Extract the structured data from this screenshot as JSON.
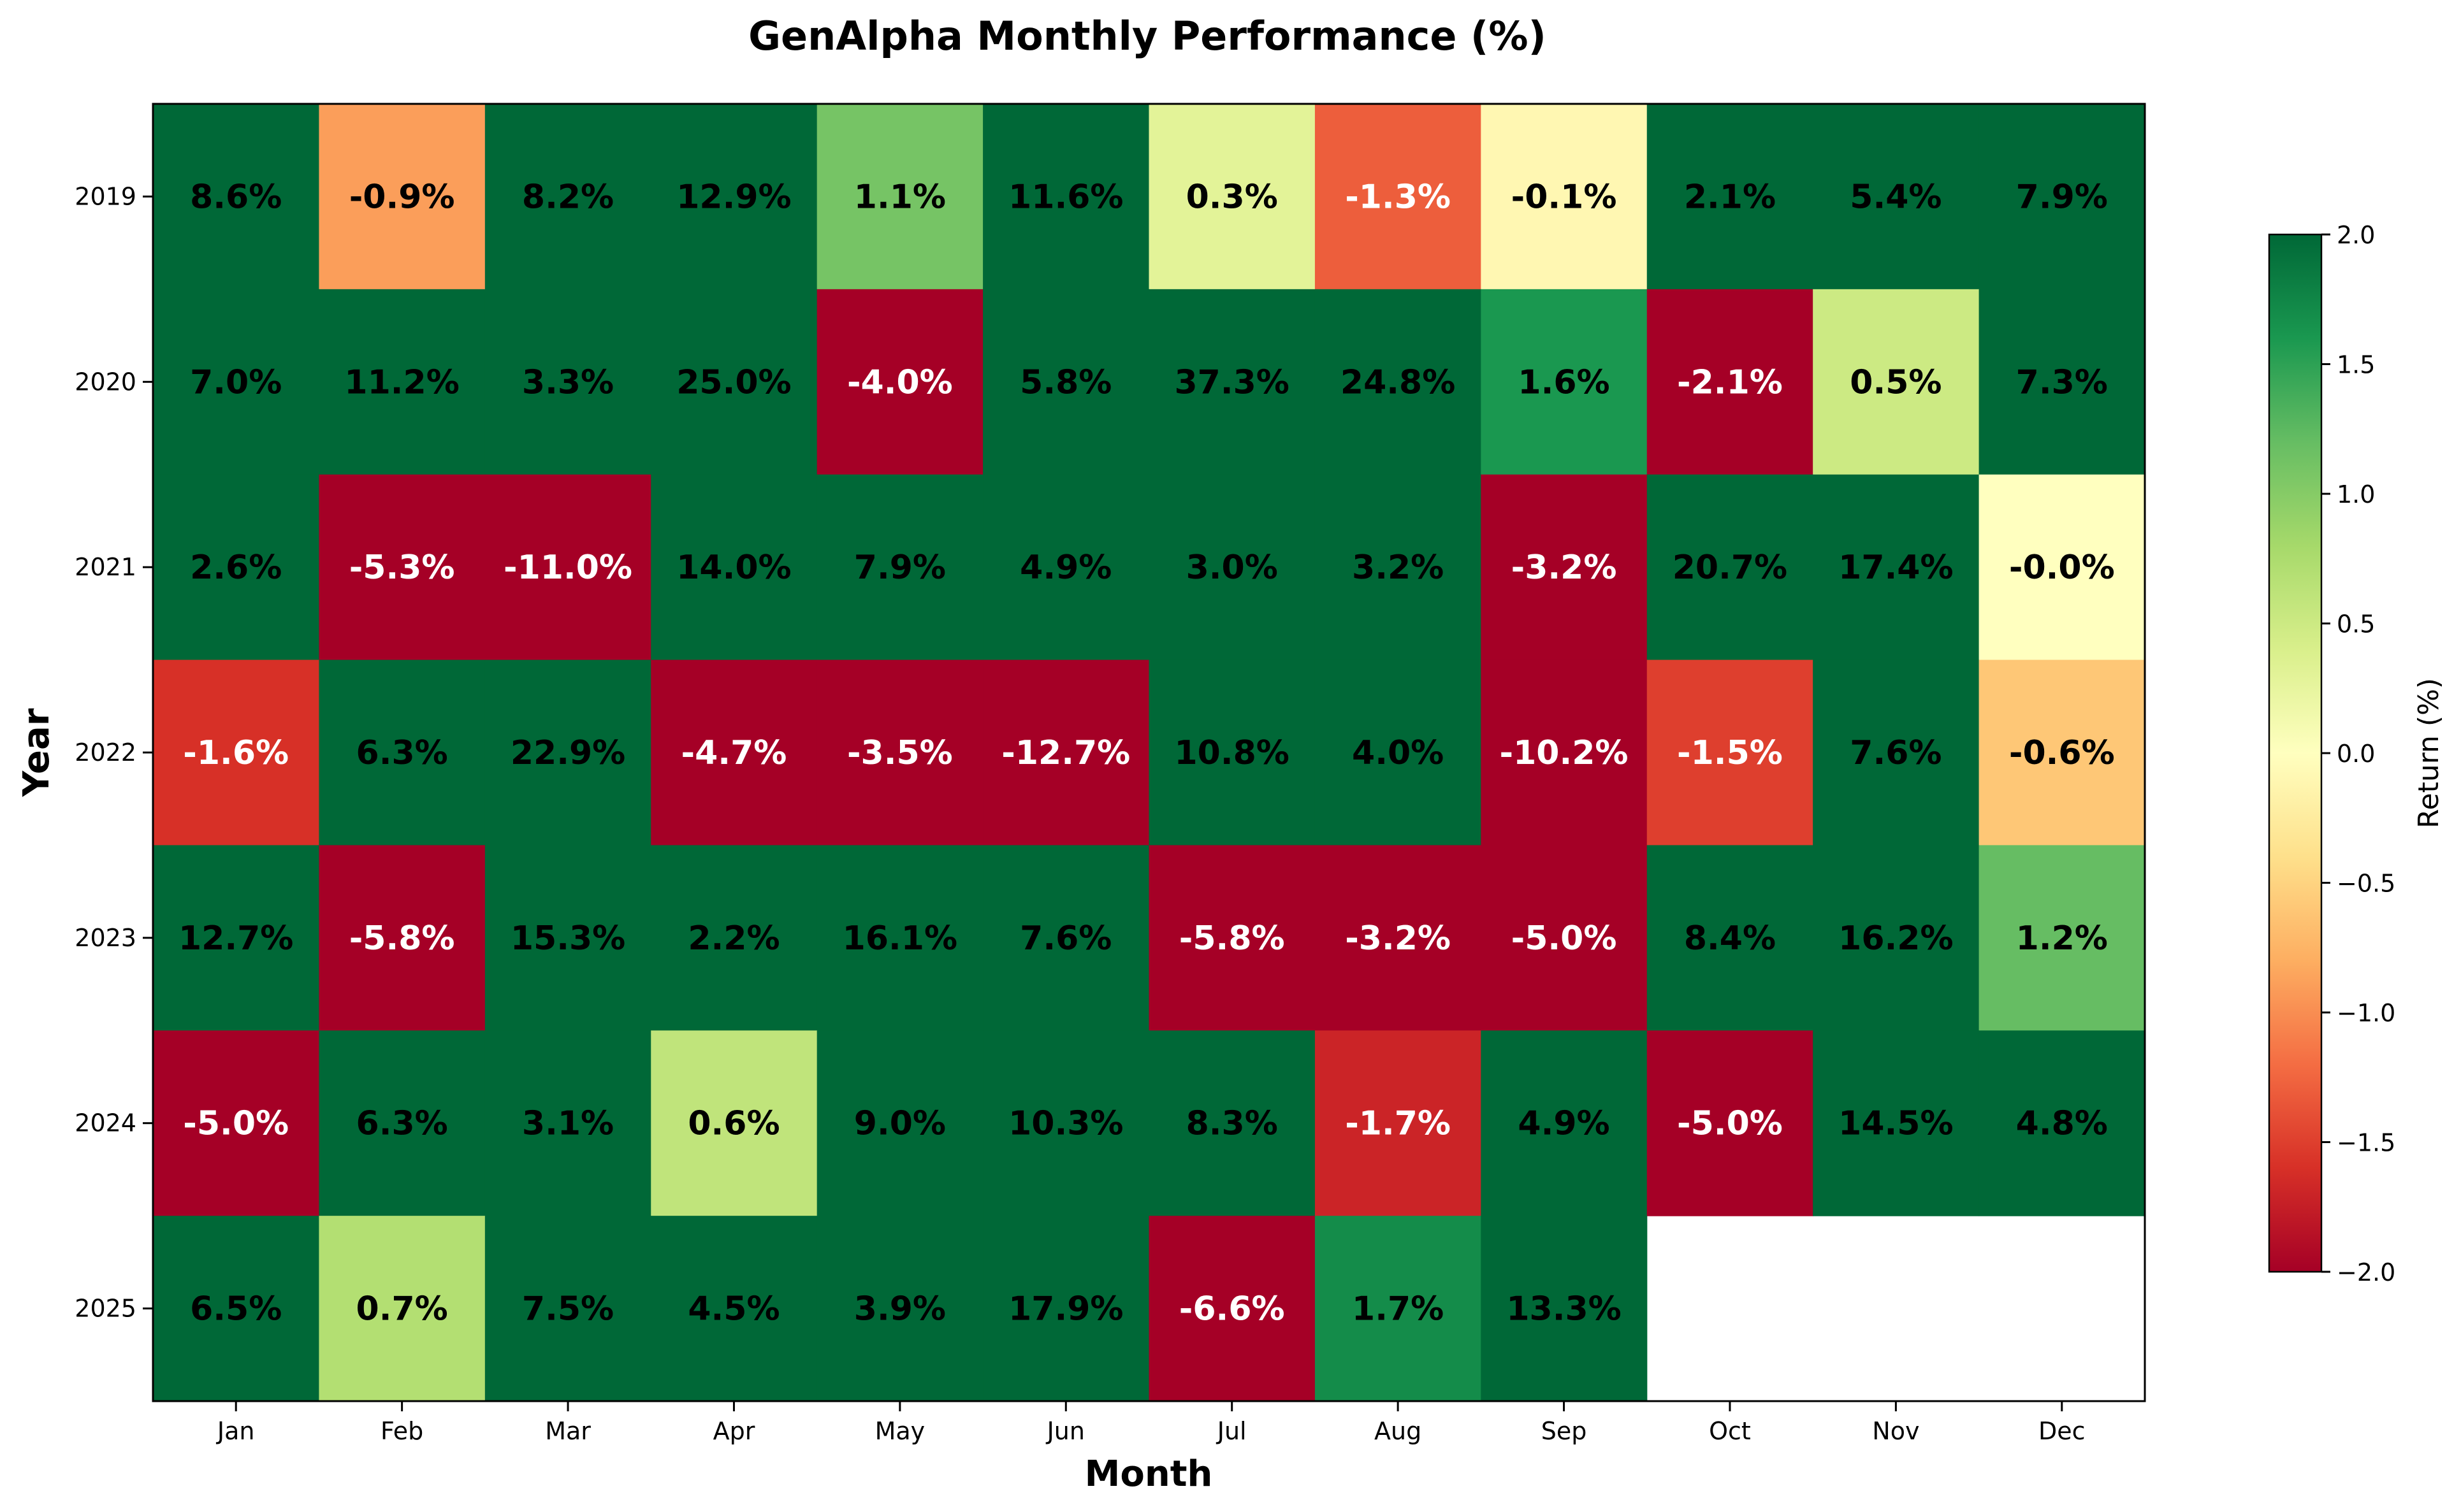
{
  "chart_data": {
    "type": "heatmap",
    "title": "GenAlpha Monthly Performance (%)",
    "xlabel": "Month",
    "ylabel": "Year",
    "x": [
      "Jan",
      "Feb",
      "Mar",
      "Apr",
      "May",
      "Jun",
      "Jul",
      "Aug",
      "Sep",
      "Oct",
      "Nov",
      "Dec"
    ],
    "y": [
      "2019",
      "2020",
      "2021",
      "2022",
      "2023",
      "2024",
      "2025"
    ],
    "values": [
      [
        8.6,
        -0.9,
        8.2,
        12.9,
        1.1,
        11.6,
        0.3,
        -1.3,
        -0.1,
        2.1,
        5.4,
        7.9
      ],
      [
        7.0,
        11.2,
        3.3,
        25.0,
        -4.0,
        5.8,
        37.3,
        24.8,
        1.6,
        -2.1,
        0.5,
        7.3
      ],
      [
        2.6,
        -5.3,
        -11.0,
        14.0,
        7.9,
        4.9,
        3.0,
        3.2,
        -3.2,
        20.7,
        17.4,
        -0.0
      ],
      [
        -1.6,
        6.3,
        22.9,
        -4.7,
        -3.5,
        -12.7,
        10.8,
        4.0,
        -10.2,
        -1.5,
        7.6,
        -0.6
      ],
      [
        12.7,
        -5.8,
        15.3,
        2.2,
        16.1,
        7.6,
        -5.8,
        -3.2,
        -5.0,
        8.4,
        16.2,
        1.2
      ],
      [
        -5.0,
        6.3,
        3.1,
        0.6,
        9.0,
        10.3,
        8.3,
        -1.7,
        4.9,
        -5.0,
        14.5,
        4.8
      ],
      [
        6.5,
        0.7,
        7.5,
        4.5,
        3.9,
        17.9,
        -6.6,
        1.7,
        13.3,
        null,
        null,
        null
      ]
    ],
    "labels": [
      [
        "8.6%",
        "-0.9%",
        "8.2%",
        "12.9%",
        "1.1%",
        "11.6%",
        "0.3%",
        "-1.3%",
        "-0.1%",
        "2.1%",
        "5.4%",
        "7.9%"
      ],
      [
        "7.0%",
        "11.2%",
        "3.3%",
        "25.0%",
        "-4.0%",
        "5.8%",
        "37.3%",
        "24.8%",
        "1.6%",
        "-2.1%",
        "0.5%",
        "7.3%"
      ],
      [
        "2.6%",
        "-5.3%",
        "-11.0%",
        "14.0%",
        "7.9%",
        "4.9%",
        "3.0%",
        "3.2%",
        "-3.2%",
        "20.7%",
        "17.4%",
        "-0.0%"
      ],
      [
        "-1.6%",
        "6.3%",
        "22.9%",
        "-4.7%",
        "-3.5%",
        "-12.7%",
        "10.8%",
        "4.0%",
        "-10.2%",
        "-1.5%",
        "7.6%",
        "-0.6%"
      ],
      [
        "12.7%",
        "-5.8%",
        "15.3%",
        "2.2%",
        "16.1%",
        "7.6%",
        "-5.8%",
        "-3.2%",
        "-5.0%",
        "8.4%",
        "16.2%",
        "1.2%"
      ],
      [
        "-5.0%",
        "6.3%",
        "3.1%",
        "0.6%",
        "9.0%",
        "10.3%",
        "8.3%",
        "-1.7%",
        "4.9%",
        "-5.0%",
        "14.5%",
        "4.8%"
      ],
      [
        "6.5%",
        "0.7%",
        "7.5%",
        "4.5%",
        "3.9%",
        "17.9%",
        "-6.6%",
        "1.7%",
        "13.3%",
        null,
        null,
        null
      ]
    ],
    "colorbar": {
      "label": "Return (%)",
      "range": [
        -2.0,
        2.0
      ],
      "ticks": [
        "-2.0",
        "-1.5",
        "-1.0",
        "-0.5",
        "0.0",
        "0.5",
        "1.0",
        "1.5",
        "2.0"
      ],
      "colormap": "RdYlGn",
      "stops": [
        "#a50026",
        "#d73027",
        "#f46d43",
        "#fdae61",
        "#fee08b",
        "#ffffbf",
        "#d9ef8b",
        "#a6d96a",
        "#66bd63",
        "#1a9850",
        "#006837"
      ]
    },
    "grid": false
  }
}
